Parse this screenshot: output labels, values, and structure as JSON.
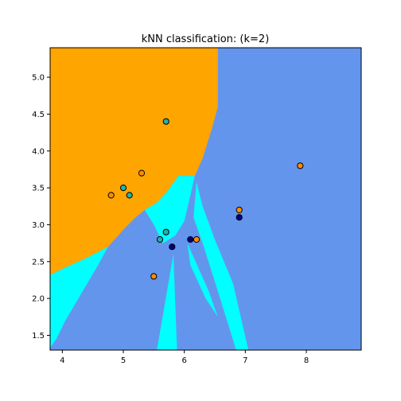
{
  "chart_data": {
    "type": "scatter",
    "title": "kNN classification: (k=2)",
    "xlabel": "",
    "ylabel": "",
    "xlim": [
      3.8,
      8.9
    ],
    "ylim": [
      1.3,
      5.4
    ],
    "x_ticks": [
      4,
      5,
      6,
      7,
      8
    ],
    "x_tick_labels": [
      "4",
      "5",
      "6",
      "7",
      "8"
    ],
    "y_ticks": [
      1.5,
      2.0,
      2.5,
      3.0,
      3.5,
      4.0,
      4.5,
      5.0
    ],
    "y_tick_labels": [
      "1.5",
      "2.0",
      "2.5",
      "3.0",
      "3.5",
      "4.0",
      "4.5",
      "5.0"
    ],
    "grid": false,
    "decision_regions": {
      "colors": {
        "class_0": "#ffa500",
        "class_1": "#00ffff",
        "class_2": "#6495ed"
      },
      "background_class": "class_2",
      "regions": [
        {
          "class": "class_0",
          "vertices": [
            [
              3.8,
              5.4
            ],
            [
              6.55,
              5.4
            ],
            [
              6.55,
              4.6
            ],
            [
              6.45,
              4.3
            ],
            [
              6.3,
              3.9
            ],
            [
              6.17,
              3.66
            ],
            [
              5.9,
              3.66
            ],
            [
              5.72,
              3.45
            ],
            [
              5.55,
              3.3
            ],
            [
              5.35,
              3.2
            ],
            [
              5.2,
              3.1
            ],
            [
              5.02,
              2.95
            ],
            [
              4.75,
              2.7
            ],
            [
              4.4,
              2.55
            ],
            [
              4.0,
              2.4
            ],
            [
              3.8,
              2.32
            ]
          ]
        },
        {
          "class": "class_1",
          "vertices": [
            [
              3.8,
              2.32
            ],
            [
              4.0,
              2.4
            ],
            [
              4.4,
              2.55
            ],
            [
              4.75,
              2.7
            ],
            [
              4.55,
              2.4
            ],
            [
              4.3,
              2.05
            ],
            [
              4.05,
              1.7
            ],
            [
              3.9,
              1.45
            ],
            [
              3.8,
              1.33
            ]
          ]
        },
        {
          "class": "class_1",
          "vertices": [
            [
              5.35,
              3.2
            ],
            [
              5.55,
              3.3
            ],
            [
              5.72,
              3.45
            ],
            [
              5.9,
              3.66
            ],
            [
              6.17,
              3.66
            ],
            [
              6.1,
              3.4
            ],
            [
              6.0,
              3.05
            ],
            [
              5.85,
              2.85
            ],
            [
              5.65,
              2.75
            ],
            [
              5.5,
              3.0
            ]
          ]
        },
        {
          "class": "class_1",
          "vertices": [
            [
              5.82,
              2.6
            ],
            [
              5.88,
              1.3
            ],
            [
              5.55,
              1.3
            ]
          ]
        },
        {
          "class": "class_1",
          "vertices": [
            [
              6.2,
              3.58
            ],
            [
              6.3,
              3.25
            ],
            [
              6.5,
              2.8
            ],
            [
              6.8,
              2.2
            ],
            [
              7.05,
              1.3
            ],
            [
              6.85,
              1.3
            ],
            [
              6.55,
              2.1
            ],
            [
              6.3,
              2.75
            ],
            [
              6.15,
              3.1
            ]
          ]
        },
        {
          "class": "class_1",
          "vertices": [
            [
              6.05,
              2.75
            ],
            [
              6.4,
              2.1
            ],
            [
              6.55,
              1.75
            ],
            [
              6.35,
              2.0
            ],
            [
              6.1,
              2.45
            ]
          ]
        }
      ]
    },
    "series": [
      {
        "color": "#ff8c00",
        "points": [
          [
            4.8,
            3.4
          ],
          [
            5.3,
            3.7
          ],
          [
            5.5,
            2.3
          ],
          [
            6.2,
            2.8
          ],
          [
            6.9,
            3.2
          ],
          [
            7.9,
            3.8
          ]
        ]
      },
      {
        "color": "#20b2aa",
        "points": [
          [
            5.0,
            3.5
          ],
          [
            5.1,
            3.4
          ],
          [
            5.7,
            4.4
          ],
          [
            5.7,
            2.9
          ],
          [
            5.6,
            2.8
          ]
        ]
      },
      {
        "color": "#00008b",
        "points": [
          [
            5.8,
            2.7
          ],
          [
            6.1,
            2.8
          ],
          [
            6.9,
            3.1
          ]
        ]
      }
    ]
  }
}
